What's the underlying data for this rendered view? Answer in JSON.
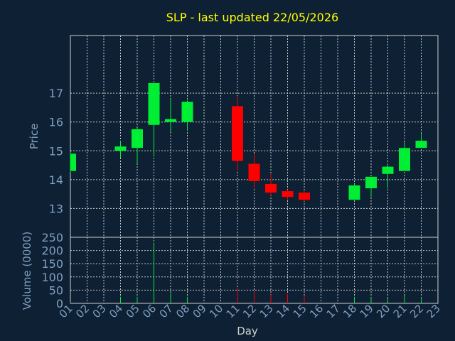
{
  "chart_data": [
    {
      "type": "candlestick",
      "title": "SLP - last updated 22/05/2026",
      "ylabel": "Price",
      "ylim": [
        12,
        19
      ],
      "yticks": [
        13,
        14,
        15,
        16,
        17
      ],
      "grid": true,
      "candles": [
        {
          "day": "01",
          "open": 14.3,
          "close": 14.9,
          "high": 14.95,
          "low": 14.25
        },
        {
          "day": "04",
          "open": 15.0,
          "close": 15.15,
          "high": 15.35,
          "low": 14.75
        },
        {
          "day": "05",
          "open": 15.1,
          "close": 15.75,
          "high": 15.8,
          "low": 14.55
        },
        {
          "day": "06",
          "open": 15.9,
          "close": 17.35,
          "high": 17.35,
          "low": 14.8
        },
        {
          "day": "07",
          "open": 16.0,
          "close": 16.1,
          "high": 16.8,
          "low": 15.65
        },
        {
          "day": "08",
          "open": 16.0,
          "close": 16.7,
          "high": 16.75,
          "low": 15.7
        },
        {
          "day": "11",
          "open": 16.55,
          "close": 14.65,
          "high": 16.9,
          "low": 14.3
        },
        {
          "day": "12",
          "open": 14.55,
          "close": 13.95,
          "high": 14.9,
          "low": 13.7
        },
        {
          "day": "13",
          "open": 13.85,
          "close": 13.55,
          "high": 14.2,
          "low": 13.45
        },
        {
          "day": "14",
          "open": 13.6,
          "close": 13.4,
          "high": 13.65,
          "low": 13.3
        },
        {
          "day": "15",
          "open": 13.55,
          "close": 13.3,
          "high": 13.6,
          "low": 13.25
        },
        {
          "day": "18",
          "open": 13.3,
          "close": 13.8,
          "high": 13.85,
          "low": 13.3
        },
        {
          "day": "19",
          "open": 13.7,
          "close": 14.1,
          "high": 14.1,
          "low": 13.4
        },
        {
          "day": "20",
          "open": 14.2,
          "close": 14.45,
          "high": 14.55,
          "low": 13.7
        },
        {
          "day": "21",
          "open": 14.3,
          "close": 15.1,
          "high": 15.3,
          "low": 14.3
        },
        {
          "day": "22",
          "open": 15.1,
          "close": 15.35,
          "high": 15.6,
          "low": 15.1
        }
      ]
    },
    {
      "type": "bar",
      "xlabel": "Day",
      "ylabel": "Volume (0000)",
      "ylim": [
        0,
        250
      ],
      "yticks": [
        0,
        50,
        100,
        150,
        200,
        250
      ],
      "grid": true,
      "categories": [
        "01",
        "02",
        "03",
        "04",
        "05",
        "06",
        "07",
        "08",
        "09",
        "10",
        "11",
        "12",
        "13",
        "14",
        "15",
        "16",
        "17",
        "18",
        "19",
        "20",
        "21",
        "22",
        "23"
      ],
      "values": [
        {
          "day": "01",
          "volume": 5
        },
        {
          "day": "04",
          "volume": 25
        },
        {
          "day": "05",
          "volume": 25
        },
        {
          "day": "06",
          "volume": 225
        },
        {
          "day": "07",
          "volume": 38
        },
        {
          "day": "08",
          "volume": 25
        },
        {
          "day": "11",
          "volume": 60
        },
        {
          "day": "12",
          "volume": 45
        },
        {
          "day": "13",
          "volume": 33
        },
        {
          "day": "14",
          "volume": 35
        },
        {
          "day": "15",
          "volume": 30
        },
        {
          "day": "18",
          "volume": 25
        },
        {
          "day": "19",
          "volume": 22
        },
        {
          "day": "20",
          "volume": 20
        },
        {
          "day": "21",
          "volume": 30
        },
        {
          "day": "22",
          "volume": 22
        }
      ]
    }
  ],
  "colors": {
    "background": "#0e2033",
    "up": "#00ee33",
    "down": "#ff0000",
    "title": "#ffff00",
    "axis_text": "#7f9fc0",
    "grid": "#c8c8c8",
    "axis_line": "#d0d0d0"
  }
}
